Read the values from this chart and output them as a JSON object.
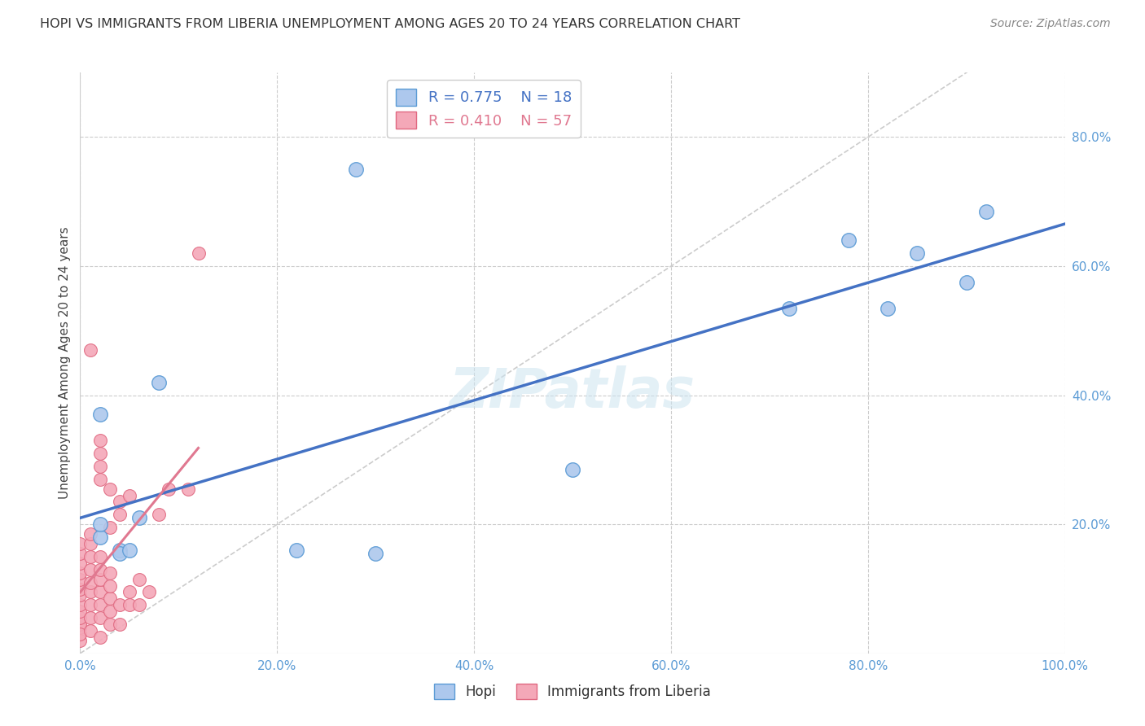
{
  "title": "HOPI VS IMMIGRANTS FROM LIBERIA UNEMPLOYMENT AMONG AGES 20 TO 24 YEARS CORRELATION CHART",
  "source": "Source: ZipAtlas.com",
  "ylabel": "Unemployment Among Ages 20 to 24 years",
  "xlim": [
    0,
    1.0
  ],
  "ylim": [
    0,
    0.9
  ],
  "xticks": [
    0.0,
    0.2,
    0.4,
    0.6,
    0.8,
    1.0
  ],
  "yticks": [
    0.2,
    0.4,
    0.6,
    0.8
  ],
  "xticklabels": [
    "0.0%",
    "20.0%",
    "40.0%",
    "60.0%",
    "80.0%",
    "100.0%"
  ],
  "yticklabels": [
    "20.0%",
    "40.0%",
    "60.0%",
    "80.0%"
  ],
  "legend": {
    "hopi_R": "0.775",
    "hopi_N": "18",
    "liberia_R": "0.410",
    "liberia_N": "57"
  },
  "hopi_color": "#adc8ed",
  "hopi_edge_color": "#5b9bd5",
  "liberia_color": "#f4a8b8",
  "liberia_edge_color": "#e06880",
  "hopi_line_color": "#4472c4",
  "liberia_line_color": "#e07890",
  "diag_color": "#cccccc",
  "tick_color": "#5b9bd5",
  "hopi_points": [
    [
      0.02,
      0.18
    ],
    [
      0.02,
      0.2
    ],
    [
      0.02,
      0.37
    ],
    [
      0.04,
      0.16
    ],
    [
      0.04,
      0.155
    ],
    [
      0.05,
      0.16
    ],
    [
      0.06,
      0.21
    ],
    [
      0.08,
      0.42
    ],
    [
      0.22,
      0.16
    ],
    [
      0.28,
      0.75
    ],
    [
      0.3,
      0.155
    ],
    [
      0.5,
      0.285
    ],
    [
      0.72,
      0.535
    ],
    [
      0.78,
      0.64
    ],
    [
      0.82,
      0.535
    ],
    [
      0.85,
      0.62
    ],
    [
      0.9,
      0.575
    ],
    [
      0.92,
      0.685
    ]
  ],
  "liberia_points": [
    [
      0.0,
      0.03
    ],
    [
      0.0,
      0.04
    ],
    [
      0.0,
      0.045
    ],
    [
      0.0,
      0.055
    ],
    [
      0.0,
      0.065
    ],
    [
      0.0,
      0.075
    ],
    [
      0.0,
      0.09
    ],
    [
      0.0,
      0.1
    ],
    [
      0.0,
      0.115
    ],
    [
      0.0,
      0.125
    ],
    [
      0.0,
      0.14
    ],
    [
      0.0,
      0.155
    ],
    [
      0.0,
      0.17
    ],
    [
      0.0,
      0.02
    ],
    [
      0.0,
      0.03
    ],
    [
      0.01,
      0.035
    ],
    [
      0.01,
      0.055
    ],
    [
      0.01,
      0.075
    ],
    [
      0.01,
      0.095
    ],
    [
      0.01,
      0.11
    ],
    [
      0.01,
      0.13
    ],
    [
      0.01,
      0.15
    ],
    [
      0.01,
      0.17
    ],
    [
      0.01,
      0.185
    ],
    [
      0.01,
      0.47
    ],
    [
      0.02,
      0.025
    ],
    [
      0.02,
      0.055
    ],
    [
      0.02,
      0.075
    ],
    [
      0.02,
      0.095
    ],
    [
      0.02,
      0.115
    ],
    [
      0.02,
      0.13
    ],
    [
      0.02,
      0.15
    ],
    [
      0.02,
      0.27
    ],
    [
      0.02,
      0.29
    ],
    [
      0.02,
      0.31
    ],
    [
      0.02,
      0.33
    ],
    [
      0.03,
      0.045
    ],
    [
      0.03,
      0.065
    ],
    [
      0.03,
      0.085
    ],
    [
      0.03,
      0.105
    ],
    [
      0.03,
      0.125
    ],
    [
      0.03,
      0.195
    ],
    [
      0.03,
      0.255
    ],
    [
      0.04,
      0.045
    ],
    [
      0.04,
      0.075
    ],
    [
      0.04,
      0.215
    ],
    [
      0.04,
      0.235
    ],
    [
      0.05,
      0.075
    ],
    [
      0.05,
      0.095
    ],
    [
      0.05,
      0.245
    ],
    [
      0.06,
      0.075
    ],
    [
      0.06,
      0.115
    ],
    [
      0.07,
      0.095
    ],
    [
      0.08,
      0.215
    ],
    [
      0.09,
      0.255
    ],
    [
      0.11,
      0.255
    ],
    [
      0.12,
      0.62
    ]
  ]
}
